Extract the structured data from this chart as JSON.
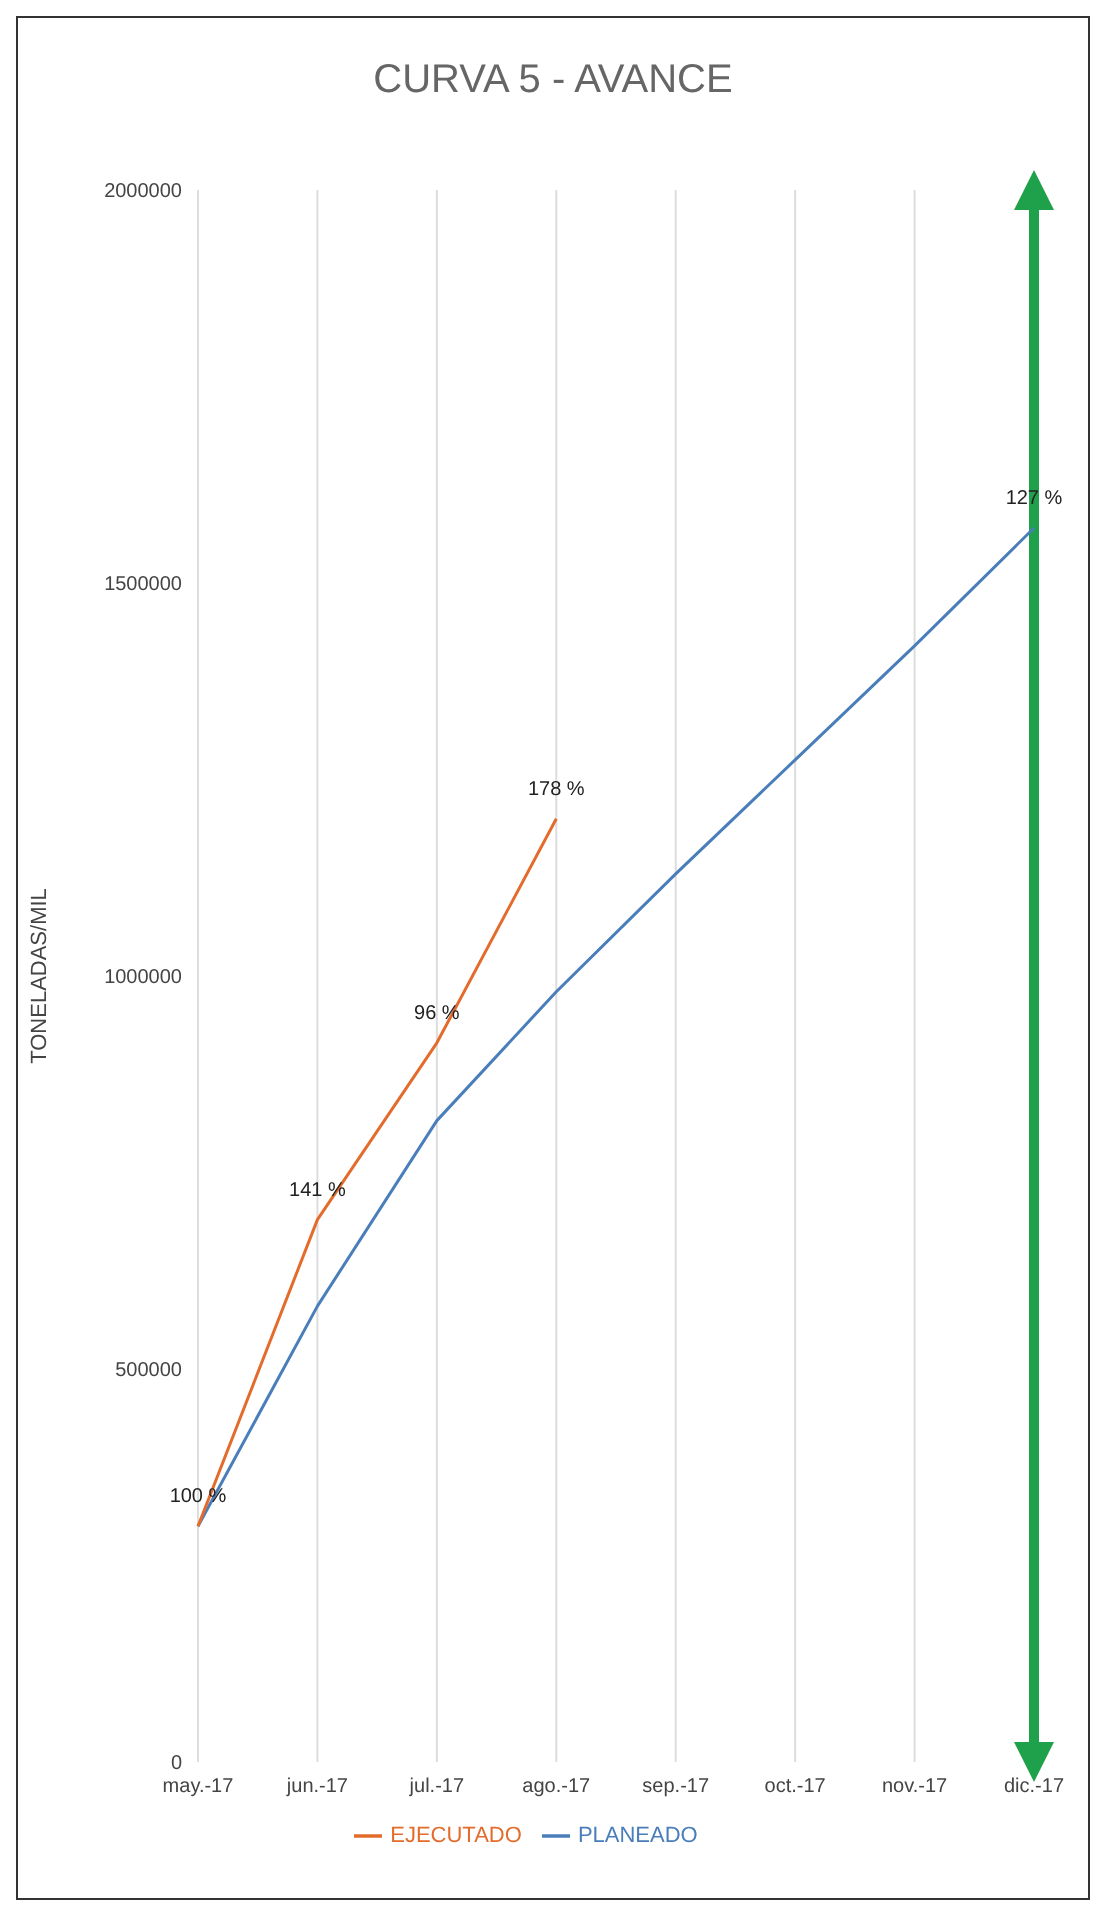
{
  "chart_data": {
    "type": "line",
    "title": "CURVA 5 - AVANCE",
    "ylabel": "TONELADAS/MIL",
    "categories": [
      "may.-17",
      "jun.-17",
      "jul.-17",
      "ago.-17",
      "sep.-17",
      "oct.-17",
      "nov.-17",
      "dic.-17"
    ],
    "series": [
      {
        "name": "PLANEADO",
        "color": "#4a7ebb",
        "values": [
          300000,
          580000,
          816000,
          980000,
          1130000,
          1275000,
          1420000,
          1570000
        ]
      },
      {
        "name": "EJECUTADO",
        "color": "#e36c2c",
        "values": [
          300000,
          690000,
          915000,
          1200000,
          null,
          null,
          null,
          null
        ]
      }
    ],
    "annotations": [
      {
        "text": "100 %",
        "x": "may.-17",
        "y": 300000
      },
      {
        "text": "141 %",
        "x": "jun.-17",
        "y": 690000
      },
      {
        "text": "96 %",
        "x": "jul.-17",
        "y": 915000
      },
      {
        "text": "178 %",
        "x": "ago.-17",
        "y": 1200000
      },
      {
        "text": "127 %",
        "x": "dic.-17",
        "y": 1570000
      }
    ],
    "ylim": [
      0,
      2000000
    ],
    "yticks": [
      0,
      500000,
      1000000,
      1500000,
      2000000
    ],
    "ref_lines": [
      {
        "axis": "x",
        "value": "dic.-17",
        "color": "#1fa04a"
      }
    ],
    "grid": "x",
    "legend": "bottom",
    "marker": "none",
    "line_style": "solid"
  }
}
